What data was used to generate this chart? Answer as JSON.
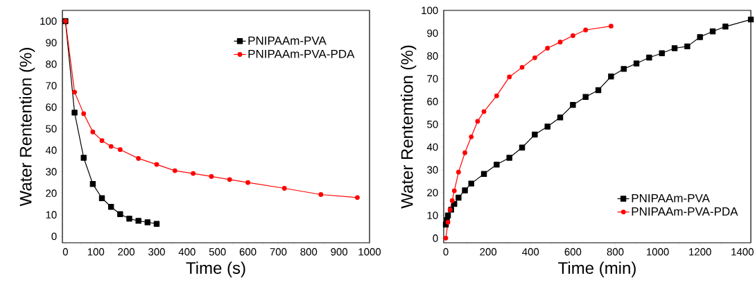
{
  "chart_data": [
    {
      "type": "line",
      "xlabel": "Time (s)",
      "ylabel": "Water Rentention (%)",
      "xlim": [
        -10,
        1000
      ],
      "ylim": [
        -3,
        105
      ],
      "xticks": [
        0,
        100,
        200,
        300,
        400,
        500,
        600,
        700,
        800,
        900,
        1000
      ],
      "yticks": [
        0,
        10,
        20,
        30,
        40,
        50,
        60,
        70,
        80,
        90,
        100
      ],
      "grid": false,
      "legend": "top right",
      "series": [
        {
          "name": "PNIPAAm-PVA",
          "color": "#000000",
          "marker": "square",
          "x": [
            0,
            30,
            60,
            90,
            120,
            150,
            180,
            210,
            240,
            270,
            300
          ],
          "values": [
            100,
            57.5,
            36.5,
            24.3,
            17.7,
            13.7,
            10.3,
            8.2,
            7.2,
            6.5,
            5.8
          ]
        },
        {
          "name": "PNIPAAm-PVA-PDA",
          "color": "#ff0000",
          "marker": "circle",
          "x": [
            0,
            30,
            60,
            90,
            120,
            150,
            180,
            240,
            300,
            360,
            420,
            480,
            540,
            600,
            720,
            840,
            960
          ],
          "values": [
            100,
            67,
            57,
            48.5,
            44.5,
            41.8,
            40.3,
            36.2,
            33.4,
            30.5,
            29.2,
            27.8,
            26.4,
            25.0,
            22.3,
            19.4,
            18.0
          ]
        }
      ]
    },
    {
      "type": "line",
      "xlabel": "Time (min)",
      "ylabel": "Water Rentemtion (%)",
      "xlim": [
        -10,
        1440
      ],
      "ylim": [
        -2,
        100
      ],
      "xticks": [
        0,
        200,
        400,
        600,
        800,
        1000,
        1200,
        1400
      ],
      "yticks": [
        0,
        10,
        20,
        30,
        40,
        50,
        60,
        70,
        80,
        90,
        100
      ],
      "grid": false,
      "legend": "bottom right",
      "series": [
        {
          "name": "PNIPAAm-PVA",
          "color": "#000000",
          "marker": "square",
          "x": [
            0,
            5,
            10,
            25,
            40,
            60,
            90,
            120,
            180,
            240,
            300,
            360,
            420,
            480,
            540,
            600,
            660,
            720,
            780,
            840,
            900,
            960,
            1020,
            1080,
            1140,
            1200,
            1260,
            1320,
            1440
          ],
          "values": [
            6,
            8,
            10,
            12.5,
            15,
            17.8,
            21,
            24,
            28.2,
            32.3,
            35.3,
            39.8,
            45.5,
            49,
            53,
            58.5,
            62,
            65,
            71,
            74.3,
            76.7,
            79.3,
            81.2,
            83.4,
            84.2,
            88.3,
            90.8,
            92.9,
            96
          ]
        },
        {
          "name": "PNIPAAm-PVA-PDA",
          "color": "#ff0000",
          "marker": "circle",
          "x": [
            0,
            10,
            20,
            30,
            40,
            60,
            90,
            120,
            150,
            180,
            240,
            300,
            360,
            420,
            480,
            540,
            600,
            660,
            780
          ],
          "values": [
            0,
            7,
            12.5,
            16.5,
            20.8,
            29,
            37.5,
            44.5,
            51.3,
            55.6,
            62.5,
            70.8,
            75,
            79.2,
            83.4,
            86.1,
            88.9,
            91.4,
            93.1
          ]
        }
      ]
    }
  ]
}
